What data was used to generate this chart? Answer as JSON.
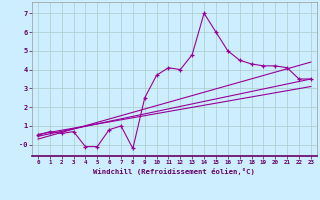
{
  "title": "",
  "xlabel": "Windchill (Refroidissement éolien,°C)",
  "bg_color": "#cceeff",
  "line_color": "#990099",
  "grid_color": "#aacccc",
  "scatter_x": [
    0,
    1,
    2,
    3,
    4,
    5,
    6,
    7,
    8,
    9,
    10,
    11,
    12,
    13,
    14,
    15,
    16,
    17,
    18,
    19,
    20,
    21,
    22,
    23
  ],
  "scatter_y": [
    0.5,
    0.7,
    0.6,
    0.7,
    -0.1,
    -0.1,
    0.8,
    1.0,
    -0.2,
    2.5,
    3.7,
    4.1,
    4.0,
    4.8,
    7.0,
    6.0,
    5.0,
    4.5,
    4.3,
    4.2,
    4.2,
    4.1,
    3.5,
    3.5
  ],
  "line1_x": [
    0,
    23
  ],
  "line1_y": [
    0.45,
    3.5
  ],
  "line2_x": [
    0,
    23
  ],
  "line2_y": [
    0.3,
    4.4
  ],
  "line3_x": [
    0,
    23
  ],
  "line3_y": [
    0.55,
    3.1
  ],
  "xlim": [
    -0.5,
    23.5
  ],
  "ylim": [
    -0.6,
    7.6
  ],
  "yticks": [
    0,
    1,
    2,
    3,
    4,
    5,
    6,
    7
  ],
  "ytick_labels": [
    "-0",
    "1",
    "2",
    "3",
    "4",
    "5",
    "6",
    "7"
  ],
  "xticks": [
    0,
    1,
    2,
    3,
    4,
    5,
    6,
    7,
    8,
    9,
    10,
    11,
    12,
    13,
    14,
    15,
    16,
    17,
    18,
    19,
    20,
    21,
    22,
    23
  ]
}
